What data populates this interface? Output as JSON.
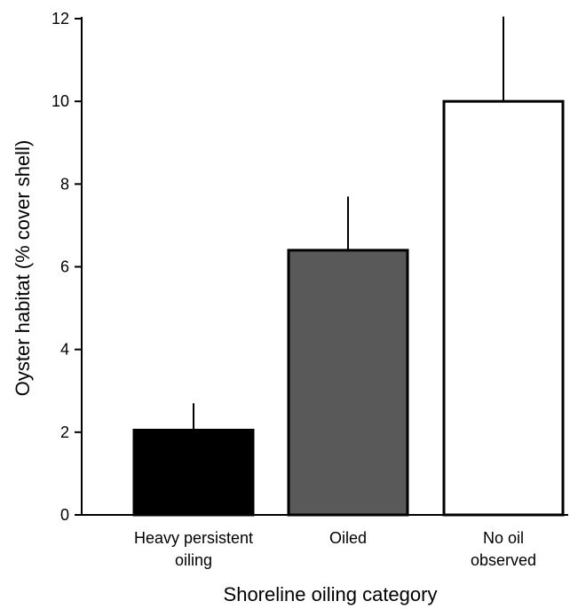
{
  "chart_data": {
    "type": "bar",
    "title": "",
    "xlabel": "Shoreline oiling category",
    "ylabel": "Oyster habitat (% cover shell)",
    "ylim": [
      0,
      12
    ],
    "yticks": [
      0,
      2,
      4,
      6,
      8,
      10,
      12
    ],
    "grid": false,
    "categories": [
      [
        "Heavy persistent",
        "oiling"
      ],
      [
        "Oiled"
      ],
      [
        "No oil",
        "observed"
      ]
    ],
    "values": [
      2.05,
      6.4,
      10.0
    ],
    "error_upper": [
      0.65,
      1.3,
      2.05
    ],
    "colors": {
      "bar_fills": [
        "#000000",
        "#595959",
        "#ffffff"
      ],
      "bar_stroke": "#000000",
      "axis": "#000000"
    }
  }
}
